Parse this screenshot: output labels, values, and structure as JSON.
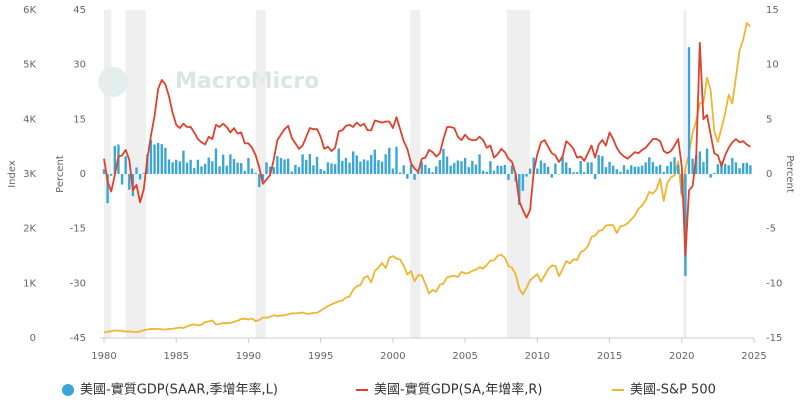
{
  "chart_data": {
    "type": "combo",
    "watermark": "MacroMicro",
    "y_label": "Percent",
    "y2_label": "Percent",
    "y3_label": "Index",
    "xlim": [
      1980,
      2025
    ],
    "xticks": [
      1980,
      1985,
      1990,
      1995,
      2000,
      2005,
      2010,
      2015,
      2020,
      2025
    ],
    "ylim": [
      -45,
      45
    ],
    "yticks": [
      -45,
      -30,
      -15,
      0,
      15,
      30,
      45
    ],
    "y2lim": [
      -15,
      15
    ],
    "y2ticks": [
      -15,
      -10,
      -5,
      0,
      5,
      10,
      15
    ],
    "y3lim": [
      0,
      6000
    ],
    "y3ticks": [
      0,
      {
        "value": 1000,
        "label": "1K"
      },
      {
        "value": 2000,
        "label": "2K"
      },
      {
        "value": 3000,
        "label": "3K"
      },
      {
        "value": 4000,
        "label": "4K"
      },
      {
        "value": 5000,
        "label": "5K"
      },
      {
        "value": 6000,
        "label": "6K"
      }
    ],
    "recessions": [
      [
        1980.0,
        1980.5
      ],
      [
        1981.5,
        1982.9
      ],
      [
        1990.5,
        1991.2
      ],
      [
        2001.2,
        2001.9
      ],
      [
        2007.9,
        2009.5
      ],
      [
        2020.1,
        2020.35
      ]
    ],
    "x": [
      1980,
      1980.25,
      1980.5,
      1980.75,
      1981,
      1981.25,
      1981.5,
      1981.75,
      1982,
      1982.25,
      1982.5,
      1982.75,
      1983,
      1983.25,
      1983.5,
      1983.75,
      1984,
      1984.25,
      1984.5,
      1984.75,
      1985,
      1985.25,
      1985.5,
      1985.75,
      1986,
      1986.25,
      1986.5,
      1986.75,
      1987,
      1987.25,
      1987.5,
      1987.75,
      1988,
      1988.25,
      1988.5,
      1988.75,
      1989,
      1989.25,
      1989.5,
      1989.75,
      1990,
      1990.25,
      1990.5,
      1990.75,
      1991,
      1991.25,
      1991.5,
      1991.75,
      1992,
      1992.25,
      1992.5,
      1992.75,
      1993,
      1993.25,
      1993.5,
      1993.75,
      1994,
      1994.25,
      1994.5,
      1994.75,
      1995,
      1995.25,
      1995.5,
      1995.75,
      1996,
      1996.25,
      1996.5,
      1996.75,
      1997,
      1997.25,
      1997.5,
      1997.75,
      1998,
      1998.25,
      1998.5,
      1998.75,
      1999,
      1999.25,
      1999.5,
      1999.75,
      2000,
      2000.25,
      2000.5,
      2000.75,
      2001,
      2001.25,
      2001.5,
      2001.75,
      2002,
      2002.25,
      2002.5,
      2002.75,
      2003,
      2003.25,
      2003.5,
      2003.75,
      2004,
      2004.25,
      2004.5,
      2004.75,
      2005,
      2005.25,
      2005.5,
      2005.75,
      2006,
      2006.25,
      2006.5,
      2006.75,
      2007,
      2007.25,
      2007.5,
      2007.75,
      2008,
      2008.25,
      2008.5,
      2008.75,
      2009,
      2009.25,
      2009.5,
      2009.75,
      2010,
      2010.25,
      2010.5,
      2010.75,
      2011,
      2011.25,
      2011.5,
      2011.75,
      2012,
      2012.25,
      2012.5,
      2012.75,
      2013,
      2013.25,
      2013.5,
      2013.75,
      2014,
      2014.25,
      2014.5,
      2014.75,
      2015,
      2015.25,
      2015.5,
      2015.75,
      2016,
      2016.25,
      2016.5,
      2016.75,
      2017,
      2017.25,
      2017.5,
      2017.75,
      2018,
      2018.25,
      2018.5,
      2018.75,
      2019,
      2019.25,
      2019.5,
      2019.75,
      2020,
      2020.25,
      2020.5,
      2020.75,
      2021,
      2021.25,
      2021.5,
      2021.75,
      2022,
      2022.25,
      2022.5,
      2022.75,
      2023,
      2023.25,
      2023.5,
      2023.75,
      2024,
      2024.25,
      2024.5,
      2024.75
    ],
    "series": [
      {
        "name": "美國-實質GDP(SAAR,季增年率,L)",
        "kind": "bar",
        "axis": "y",
        "color": "#3ba6d6",
        "values": [
          1.3,
          -8.0,
          -0.5,
          7.7,
          8.1,
          -2.9,
          4.9,
          -4.3,
          -6.1,
          1.8,
          -1.5,
          0.2,
          5.4,
          9.4,
          8.1,
          8.5,
          8.2,
          7.2,
          4.0,
          3.2,
          3.9,
          3.5,
          6.4,
          3.1,
          3.9,
          1.6,
          3.9,
          2.1,
          2.8,
          4.5,
          3.5,
          7.0,
          2.1,
          5.3,
          2.3,
          5.4,
          4.1,
          3.1,
          3.0,
          0.8,
          4.4,
          1.5,
          0.3,
          -3.6,
          -1.9,
          3.2,
          2.0,
          1.9,
          4.9,
          4.4,
          4.0,
          4.2,
          0.7,
          2.5,
          1.9,
          5.4,
          3.9,
          5.5,
          2.4,
          4.7,
          1.4,
          0.9,
          3.2,
          2.9,
          2.7,
          7.0,
          3.6,
          4.4,
          3.1,
          6.2,
          5.1,
          3.4,
          4.0,
          3.7,
          5.2,
          6.7,
          3.8,
          3.4,
          5.4,
          7.2,
          1.5,
          7.5,
          0.4,
          2.4,
          -1.3,
          2.5,
          -1.6,
          1.1,
          3.4,
          2.5,
          1.6,
          0.5,
          2.1,
          3.8,
          6.9,
          4.8,
          2.3,
          3.0,
          3.7,
          3.5,
          4.4,
          1.9,
          3.6,
          2.6,
          5.4,
          0.9,
          0.6,
          3.5,
          0.9,
          2.3,
          2.2,
          2.5,
          -1.6,
          2.3,
          -2.1,
          -8.5,
          -4.6,
          -0.7,
          1.5,
          4.5,
          1.5,
          3.7,
          3.0,
          2.0,
          -1.0,
          2.9,
          -0.1,
          4.7,
          3.2,
          1.7,
          0.5,
          0.5,
          3.6,
          0.5,
          3.2,
          3.2,
          -1.4,
          5.2,
          4.9,
          1.9,
          3.3,
          2.3,
          1.3,
          0.6,
          2.4,
          1.2,
          2.4,
          2.0,
          2.0,
          2.3,
          3.2,
          4.6,
          3.3,
          2.1,
          2.5,
          0.6,
          2.2,
          3.4,
          4.6,
          2.6,
          -5.5,
          -28.0,
          34.8,
          4.2,
          5.2,
          6.2,
          3.3,
          7.0,
          -1.0,
          0.3,
          2.7,
          3.4,
          2.8,
          2.4,
          4.4,
          3.2,
          1.6,
          3.0,
          3.1,
          2.4
        ]
      },
      {
        "name": "美國-實質GDP(SA,年增率,R)",
        "kind": "line",
        "axis": "y2",
        "color": "#e0402c",
        "values": [
          1.4,
          -0.7,
          -1.6,
          -0.1,
          1.6,
          1.7,
          2.2,
          1.3,
          -1.5,
          -1.0,
          -2.6,
          -1.4,
          1.4,
          3.5,
          5.3,
          7.8,
          8.6,
          8.2,
          7.1,
          5.6,
          4.5,
          4.2,
          4.6,
          4.3,
          4.3,
          3.8,
          3.2,
          2.9,
          2.7,
          3.4,
          3.2,
          4.5,
          4.3,
          4.6,
          4.3,
          3.8,
          4.2,
          3.7,
          3.8,
          2.8,
          2.8,
          2.4,
          1.7,
          0.6,
          -0.9,
          -0.5,
          -0.1,
          1.3,
          3.1,
          3.6,
          4.1,
          4.4,
          3.3,
          2.8,
          2.3,
          2.6,
          3.4,
          4.2,
          4.1,
          4.1,
          3.4,
          2.3,
          2.5,
          2.1,
          2.4,
          3.9,
          4.0,
          4.4,
          4.5,
          4.3,
          4.7,
          4.4,
          4.6,
          4.0,
          4.0,
          4.9,
          4.8,
          4.7,
          4.8,
          4.8,
          4.2,
          5.2,
          4.1,
          3.0,
          2.3,
          1.0,
          0.5,
          0.2,
          1.4,
          1.5,
          2.2,
          2.0,
          1.6,
          1.9,
          3.2,
          4.3,
          4.3,
          4.2,
          3.4,
          3.1,
          3.6,
          3.2,
          3.1,
          3.1,
          3.4,
          3.1,
          2.4,
          2.6,
          1.5,
          1.8,
          2.3,
          2.0,
          1.4,
          1.1,
          0.0,
          -2.5,
          -3.3,
          -4.0,
          -3.3,
          0.2,
          1.8,
          2.9,
          3.1,
          2.5,
          1.9,
          1.7,
          1.1,
          1.6,
          3.0,
          2.7,
          2.3,
          1.5,
          1.6,
          1.2,
          1.9,
          2.6,
          1.5,
          2.7,
          3.1,
          2.6,
          3.8,
          3.2,
          2.4,
          1.9,
          1.6,
          1.4,
          1.7,
          2.0,
          1.9,
          2.2,
          2.4,
          2.8,
          3.2,
          3.2,
          3.0,
          2.1,
          1.9,
          2.1,
          2.6,
          3.2,
          0.7,
          -7.5,
          -1.5,
          -1.1,
          1.6,
          12.0,
          5.0,
          5.4,
          3.6,
          1.9,
          1.7,
          0.7,
          1.7,
          2.4,
          2.9,
          3.2,
          2.9,
          3.0,
          2.7,
          2.5
        ]
      },
      {
        "name": "美國-S&P 500",
        "kind": "line",
        "axis": "y3",
        "color": "#f0b531",
        "values": [
          102,
          114,
          125,
          136,
          136,
          131,
          117,
          122,
          112,
          110,
          120,
          141,
          153,
          168,
          166,
          165,
          159,
          153,
          166,
          167,
          181,
          192,
          182,
          211,
          238,
          250,
          231,
          242,
          291,
          304,
          321,
          247,
          258,
          273,
          271,
          277,
          294,
          317,
          349,
          353,
          339,
          358,
          306,
          330,
          375,
          371,
          387,
          417,
          403,
          408,
          417,
          435,
          451,
          450,
          458,
          466,
          445,
          444,
          462,
          459,
          500,
          544,
          584,
          615,
          645,
          670,
          687,
          740,
          757,
          885,
          947,
          970,
          1101,
          1133,
          1017,
          1229,
          1286,
          1372,
          1282,
          1469,
          1498,
          1454,
          1436,
          1320,
          1160,
          1224,
          1040,
          1148,
          1147,
          989,
          815,
          879,
          848,
          974,
          995,
          1111,
          1126,
          1140,
          1114,
          1211,
          1180,
          1191,
          1228,
          1248,
          1294,
          1270,
          1335,
          1418,
          1420,
          1503,
          1526,
          1468,
          1322,
          1280,
          1166,
          903,
          797,
          919,
          1057,
          1115,
          1169,
          1030,
          1141,
          1257,
          1325,
          1320,
          1131,
          1257,
          1408,
          1362,
          1440,
          1426,
          1569,
          1606,
          1681,
          1848,
          1872,
          1960,
          1972,
          2058,
          2067,
          2063,
          1920,
          2043,
          2059,
          2098,
          2168,
          2238,
          2362,
          2423,
          2519,
          2673,
          2640,
          2718,
          2914,
          2506,
          2834,
          2941,
          2976,
          3230,
          2585,
          3100,
          3363,
          3756,
          3972,
          4297,
          4307,
          4766,
          4530,
          3785,
          3585,
          3839,
          4109,
          4450,
          4288,
          4769,
          5254,
          5460,
          5762,
          5700
        ]
      }
    ]
  }
}
